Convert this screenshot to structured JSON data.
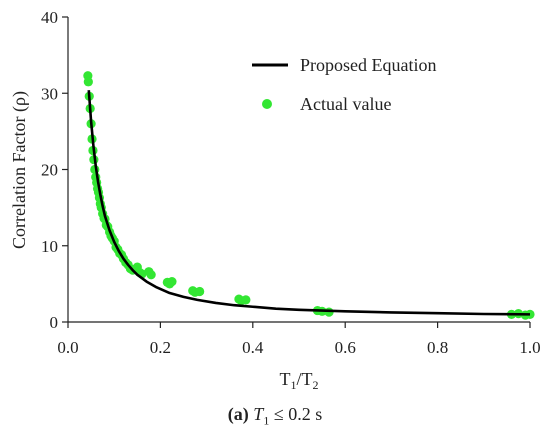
{
  "chart_data": {
    "type": "scatter",
    "title": "",
    "xlabel": "T",
    "xlabel_sub1": "1",
    "xlabel_slash": "/T",
    "xlabel_sub2": "2",
    "ylabel": "Correlation Factor (ρ)",
    "xlim": [
      0.0,
      1.0
    ],
    "ylim": [
      0,
      40
    ],
    "xticks": [
      "0.0",
      "0.2",
      "0.4",
      "0.6",
      "0.8",
      "1.0"
    ],
    "yticks": [
      "0",
      "10",
      "20",
      "30",
      "40"
    ],
    "grid": false,
    "legend_position": "top-right",
    "series": [
      {
        "name": "Proposed Equation",
        "kind": "line",
        "color": "#000000",
        "x": [
          0.045,
          0.05,
          0.055,
          0.06,
          0.065,
          0.07,
          0.075,
          0.08,
          0.09,
          0.1,
          0.11,
          0.12,
          0.13,
          0.14,
          0.15,
          0.17,
          0.19,
          0.22,
          0.25,
          0.28,
          0.32,
          0.36,
          0.4,
          0.45,
          0.5,
          0.55,
          0.6,
          0.7,
          0.8,
          0.9,
          1.0
        ],
        "y": [
          30.4,
          26.3,
          23.1,
          20.5,
          18.4,
          16.7,
          15.2,
          13.9,
          12.0,
          10.5,
          9.3,
          8.3,
          7.5,
          6.8,
          6.2,
          5.3,
          4.6,
          3.8,
          3.3,
          2.9,
          2.5,
          2.2,
          2.0,
          1.75,
          1.6,
          1.5,
          1.4,
          1.25,
          1.15,
          1.05,
          1.0
        ]
      },
      {
        "name": "Actual value",
        "kind": "scatter",
        "color": "#33e633",
        "x": [
          0.043,
          0.044,
          0.046,
          0.048,
          0.05,
          0.052,
          0.054,
          0.056,
          0.058,
          0.06,
          0.062,
          0.064,
          0.066,
          0.068,
          0.07,
          0.072,
          0.075,
          0.078,
          0.08,
          0.083,
          0.086,
          0.09,
          0.093,
          0.096,
          0.1,
          0.104,
          0.108,
          0.112,
          0.116,
          0.12,
          0.125,
          0.13,
          0.135,
          0.14,
          0.15,
          0.155,
          0.16,
          0.175,
          0.18,
          0.215,
          0.22,
          0.225,
          0.27,
          0.275,
          0.285,
          0.37,
          0.375,
          0.385,
          0.54,
          0.55,
          0.565,
          0.96,
          0.975,
          0.99,
          1.0
        ],
        "y": [
          32.3,
          31.5,
          29.6,
          28.0,
          26.0,
          24.0,
          22.5,
          21.3,
          20.0,
          19.0,
          18.3,
          17.5,
          17.0,
          16.3,
          15.5,
          15.0,
          14.2,
          13.6,
          13.5,
          12.7,
          12.5,
          11.8,
          11.3,
          11.0,
          10.6,
          9.8,
          9.5,
          9.0,
          8.8,
          8.3,
          7.8,
          7.5,
          7.0,
          6.8,
          7.2,
          6.5,
          6.3,
          6.6,
          6.2,
          5.2,
          5.0,
          5.3,
          4.1,
          3.9,
          4.0,
          3.0,
          2.8,
          2.9,
          1.5,
          1.4,
          1.3,
          1.0,
          1.1,
          0.9,
          1.0
        ]
      }
    ]
  },
  "caption": {
    "label": "(a)",
    "variable": "T",
    "subscript": "1",
    "condition": " ≤ 0.2 s"
  }
}
